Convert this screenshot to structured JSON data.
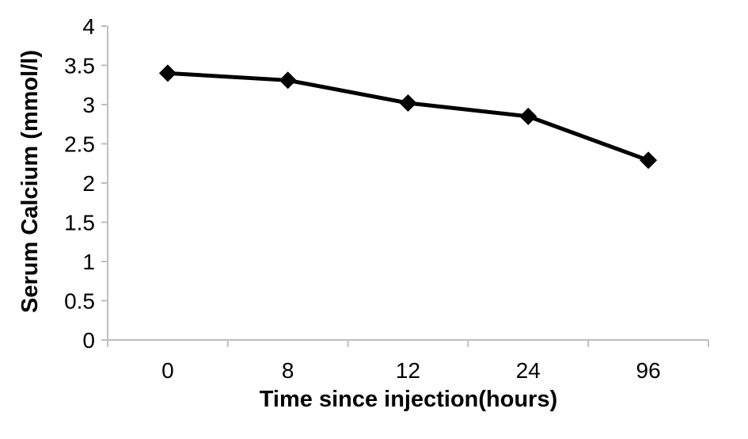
{
  "chart_data": {
    "type": "line",
    "title": "",
    "xlabel": "Time since injection(hours)",
    "ylabel": "Serum Calcium (mmol/l)",
    "categories": [
      "0",
      "8",
      "12",
      "24",
      "96"
    ],
    "series": [
      {
        "name": "Serum Calcium",
        "values": [
          3.4,
          3.31,
          3.02,
          2.85,
          2.29
        ],
        "color": "#000000",
        "marker": "diamond"
      }
    ],
    "ylim": [
      0,
      4
    ],
    "ytick_step": 0.5,
    "ytick_labels": [
      "0",
      "0.5",
      "1",
      "1.5",
      "2",
      "2.5",
      "3",
      "3.5",
      "4"
    ],
    "grid": false,
    "legend": "none",
    "axis_color": "#bfbfbf",
    "line_color": "#000000",
    "text_color": "#000000"
  }
}
